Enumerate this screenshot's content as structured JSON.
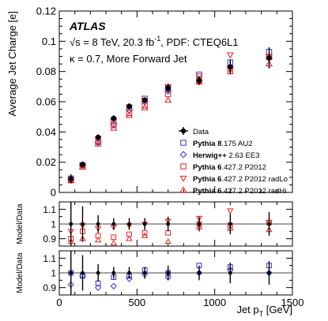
{
  "chart_data": {
    "type": "scatter",
    "experiment": "ATLAS",
    "info_line1": "√s = 8 TeV, 20.3 fb",
    "info_line1_sup": "-1",
    "info_line1_tail": ", PDF: CTEQ6L1",
    "info_line2": "κ = 0.7, More Forward Jet",
    "ylabel": "Average Jet Charge [e]",
    "ratio_ylabel": "Model/Data",
    "xlabel": "Jet p",
    "xlabel_sub": "T",
    "xlabel_unit": " [GeV]",
    "xlim": [
      0,
      1500
    ],
    "ylim": [
      0,
      0.12
    ],
    "ratio_ylim": [
      0.85,
      1.15
    ],
    "x_ticks": [
      "0",
      "500",
      "1000",
      "1500"
    ],
    "y_ticks": [
      "0",
      "0.02",
      "0.04",
      "0.06",
      "0.08",
      "0.1",
      "0.12"
    ],
    "ratio_ticks": [
      "0.9",
      "1",
      "1.1"
    ],
    "x": [
      75,
      150,
      250,
      350,
      450,
      550,
      700,
      900,
      1100,
      1350
    ],
    "data": {
      "name": "Data",
      "values": [
        0.009,
        0.0185,
        0.0365,
        0.049,
        0.057,
        0.061,
        0.069,
        0.074,
        0.083,
        0.089
      ],
      "errors": [
        0.003,
        0.002,
        0.002,
        0.002,
        0.002,
        0.002,
        0.003,
        0.003,
        0.005,
        0.007
      ]
    },
    "series": [
      {
        "name": "Pythia 8.175 AU2",
        "label_bold": "Pythia 8",
        "label_rest": ".175 AU2",
        "color": "#3333cc",
        "marker": "square",
        "values": [
          0.0092,
          0.018,
          0.034,
          0.047,
          0.056,
          0.062,
          0.069,
          0.078,
          0.086,
          0.093
        ],
        "ratio": [
          1.0,
          0.98,
          0.93,
          0.97,
          0.98,
          1.02,
          1.0,
          1.05,
          1.04,
          1.05
        ]
      },
      {
        "name": "Herwig++ 2.63 EE3",
        "label_bold": "Herwig++",
        "label_rest": " 2.63 EE3",
        "color": "#3333cc",
        "marker": "diamond",
        "values": [
          0.0085,
          0.0182,
          0.033,
          0.045,
          0.0545,
          0.06,
          0.067,
          0.074,
          0.083,
          0.089
        ],
        "ratio": [
          0.92,
          0.98,
          0.9,
          0.91,
          0.96,
          0.99,
          0.97,
          1.0,
          1.02,
          1.0
        ]
      },
      {
        "name": "Pythia 6.427.2 P2012",
        "label_bold": "Pythia 6",
        "label_rest": ".427.2 P2012",
        "color": "#e8221c",
        "marker": "square",
        "values": [
          0.008,
          0.017,
          0.0335,
          0.0445,
          0.0525,
          0.0575,
          0.065,
          0.074,
          0.082,
          0.0895
        ],
        "ratio": [
          0.9,
          0.95,
          0.92,
          0.91,
          0.93,
          0.94,
          0.94,
          1.0,
          0.99,
          1.01
        ]
      },
      {
        "name": "Pythia 6.427.2 P2012 radLo",
        "label_bold": "Pythia 6",
        "label_rest": ".427.2 P2012 radLo",
        "color": "#e8221c",
        "marker": "triangle-down",
        "values": [
          0.0085,
          0.0178,
          0.0355,
          0.048,
          0.0565,
          0.061,
          0.07,
          0.077,
          0.091,
          0.09
        ],
        "ratio": [
          0.95,
          0.99,
          0.97,
          0.98,
          0.99,
          1.0,
          1.02,
          1.04,
          1.09,
          1.01
        ]
      },
      {
        "name": "Pythia 6.427.2 P2012 radHi",
        "label_bold": "Pythia 6",
        "label_rest": ".427.2 P2012 radHi",
        "color": "#e8221c",
        "marker": "triangle-up",
        "values": [
          0.008,
          0.0168,
          0.032,
          0.0425,
          0.051,
          0.056,
          0.061,
          0.073,
          0.08,
          0.085
        ],
        "ratio": [
          0.88,
          0.9,
          0.89,
          0.87,
          0.9,
          0.92,
          0.88,
          0.98,
          0.97,
          0.96
        ]
      }
    ],
    "data_ratio_errors": [
      0.2,
      0.12,
      0.06,
      0.04,
      0.04,
      0.04,
      0.05,
      0.05,
      0.07,
      0.08
    ],
    "legend_position": "center-right"
  }
}
